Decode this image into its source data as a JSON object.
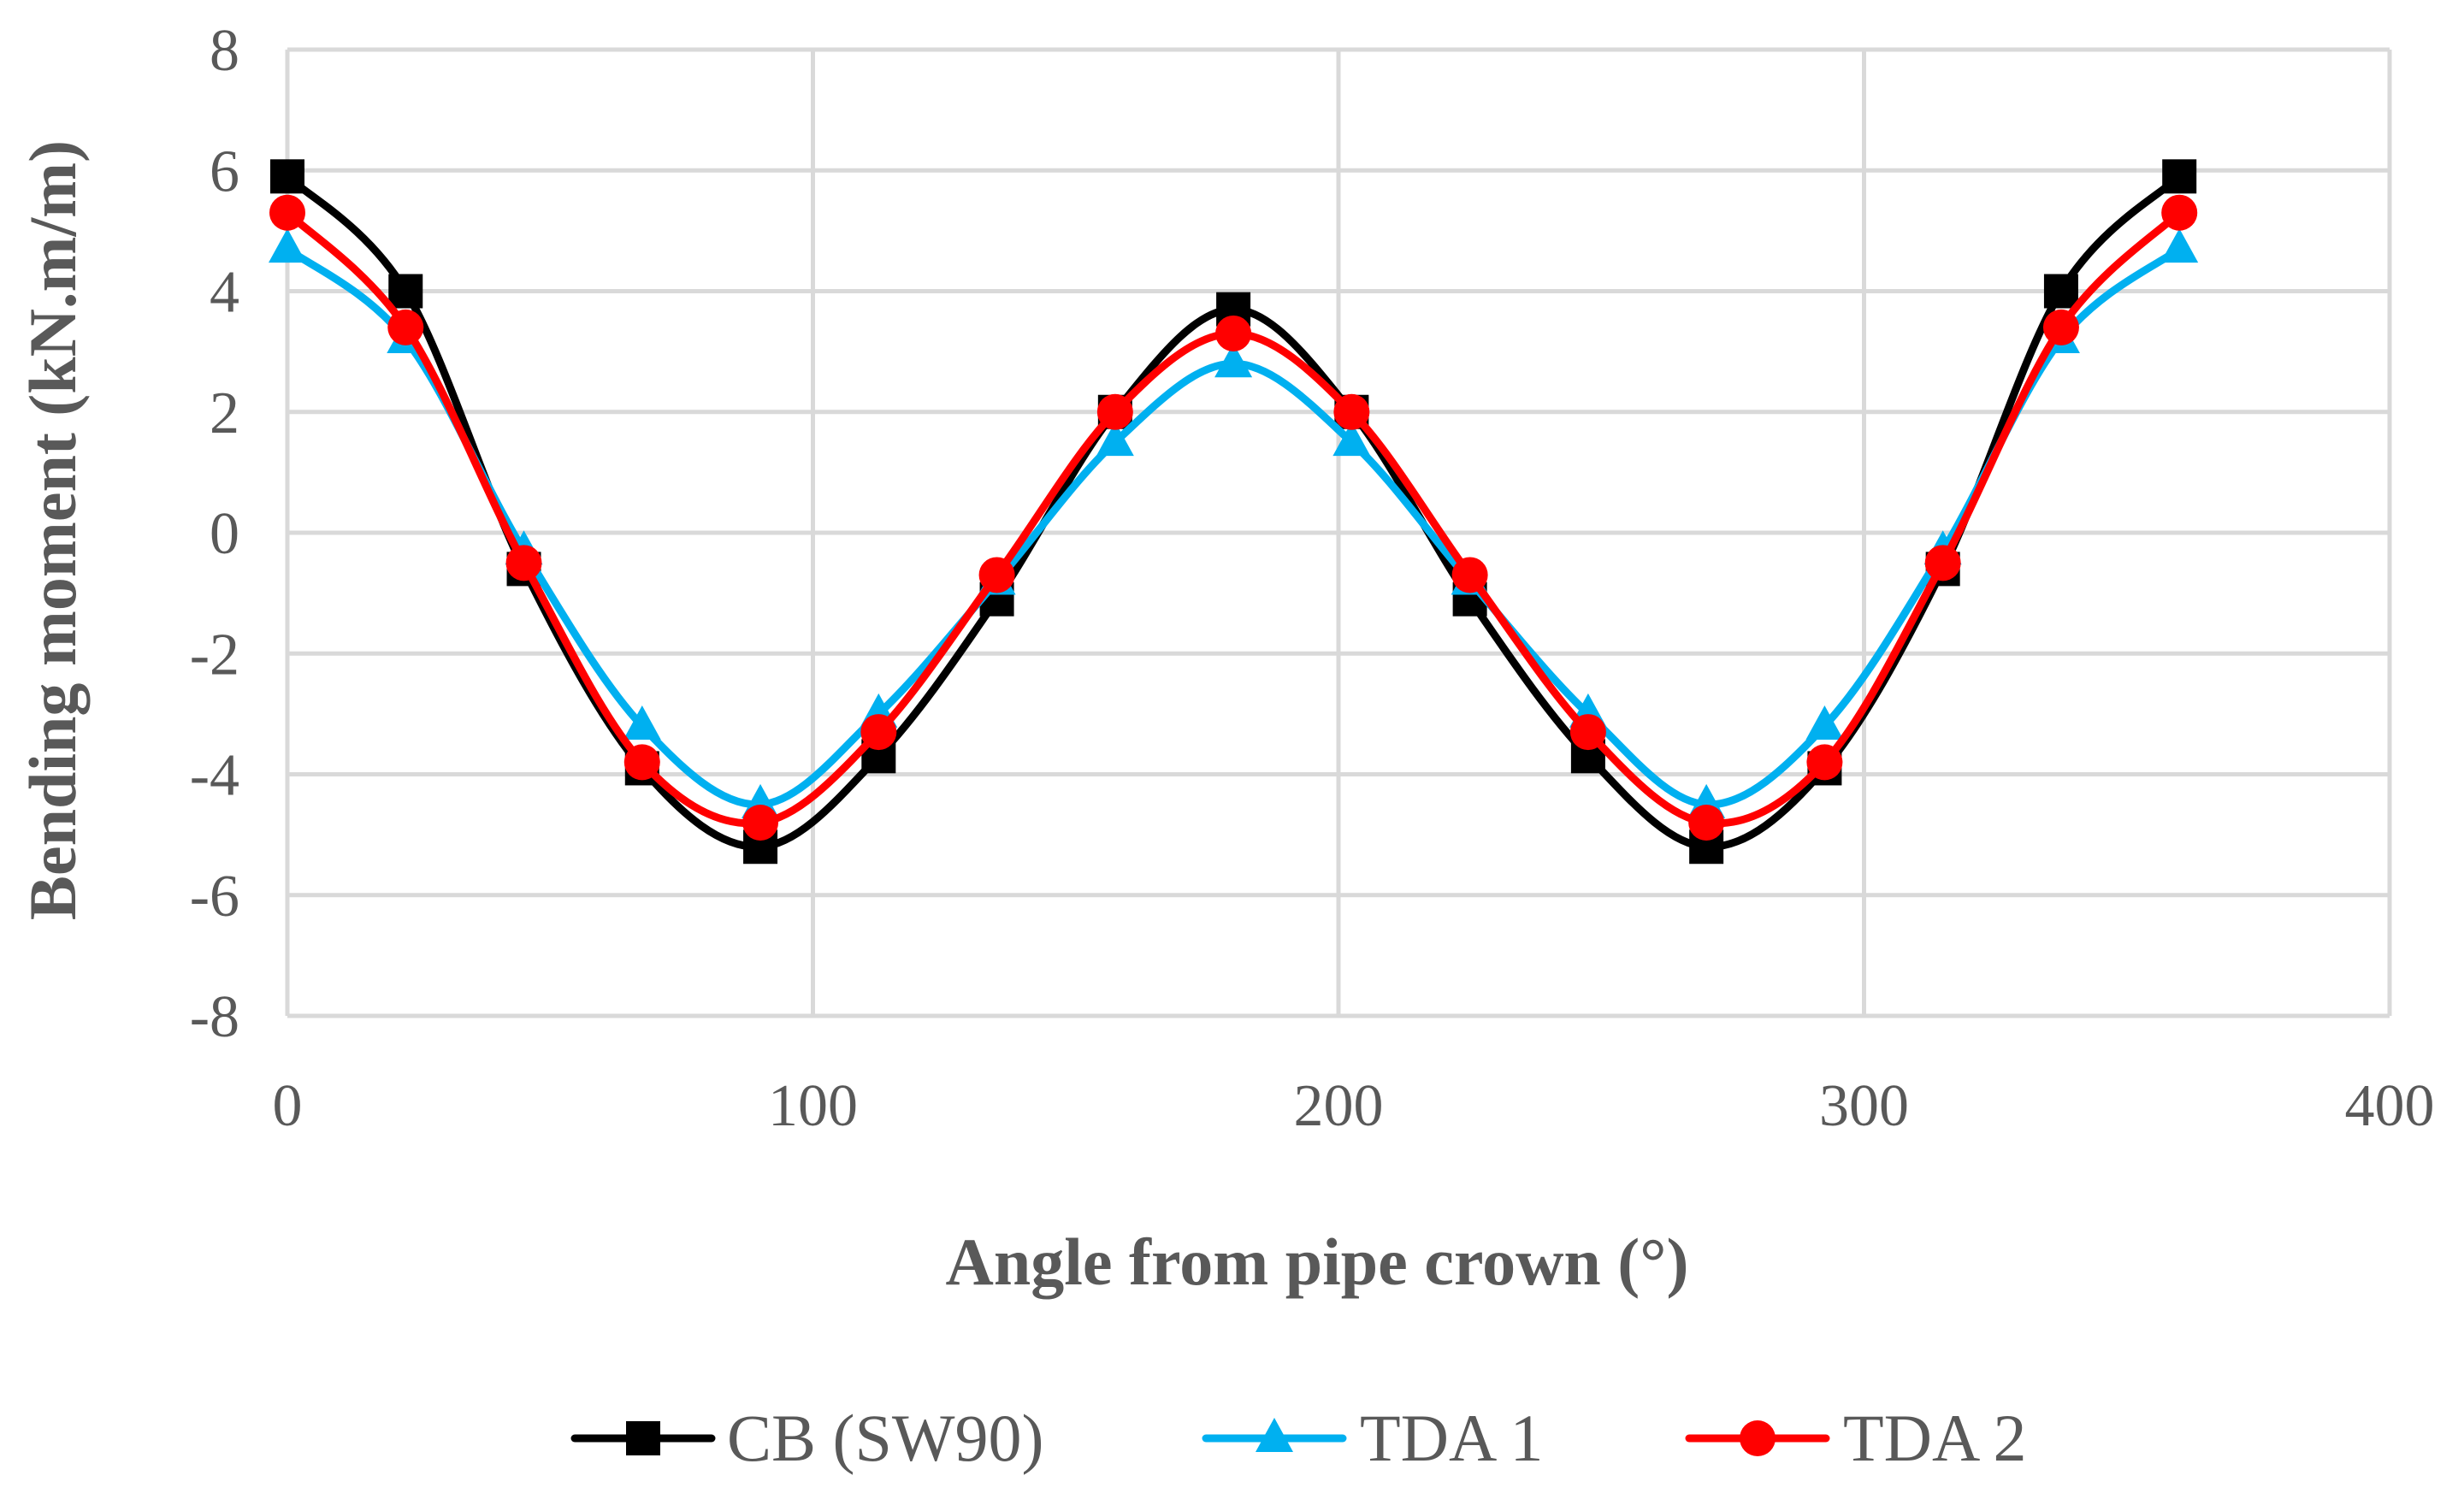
{
  "chart_data": {
    "type": "line",
    "title": "",
    "xlabel": "Angle from pipe crown (°)",
    "ylabel": "Bending moment (kN.m/m)",
    "xlim": [
      0,
      400
    ],
    "ylim": [
      -8,
      8
    ],
    "xticks": [
      0,
      100,
      200,
      300,
      400
    ],
    "yticks": [
      -8,
      -6,
      -4,
      -2,
      0,
      2,
      4,
      6,
      8
    ],
    "grid": true,
    "legend_position": "bottom",
    "smooth": true,
    "series": [
      {
        "name": "CB (SW90)",
        "color": "#000000",
        "marker": "square",
        "x": [
          0,
          22.5,
          45,
          67.5,
          90,
          112.5,
          135,
          157.5,
          180,
          202.5,
          225,
          247.5,
          270,
          292.5,
          315,
          337.5,
          360
        ],
        "y": [
          5.9,
          4.0,
          -0.6,
          -3.9,
          -5.2,
          -3.7,
          -1.1,
          2.0,
          3.7,
          2.0,
          -1.1,
          -3.7,
          -5.2,
          -3.9,
          -0.6,
          4.0,
          5.9
        ]
      },
      {
        "name": "TDA 1",
        "color": "#00b0f0",
        "marker": "triangle",
        "x": [
          0,
          22.5,
          45,
          67.5,
          90,
          112.5,
          135,
          157.5,
          180,
          202.5,
          225,
          247.5,
          270,
          292.5,
          315,
          337.5,
          360
        ],
        "y": [
          4.7,
          3.2,
          -0.3,
          -3.2,
          -4.5,
          -3.0,
          -0.8,
          1.5,
          2.8,
          1.5,
          -0.8,
          -3.0,
          -4.5,
          -3.2,
          -0.3,
          3.2,
          4.7
        ]
      },
      {
        "name": "TDA 2",
        "color": "#ff0000",
        "marker": "circle",
        "x": [
          0,
          22.5,
          45,
          67.5,
          90,
          112.5,
          135,
          157.5,
          180,
          202.5,
          225,
          247.5,
          270,
          292.5,
          315,
          337.5,
          360
        ],
        "y": [
          5.3,
          3.4,
          -0.5,
          -3.8,
          -4.8,
          -3.3,
          -0.7,
          2.0,
          3.3,
          2.0,
          -0.7,
          -3.3,
          -4.8,
          -3.8,
          -0.5,
          3.4,
          5.3
        ]
      }
    ]
  }
}
